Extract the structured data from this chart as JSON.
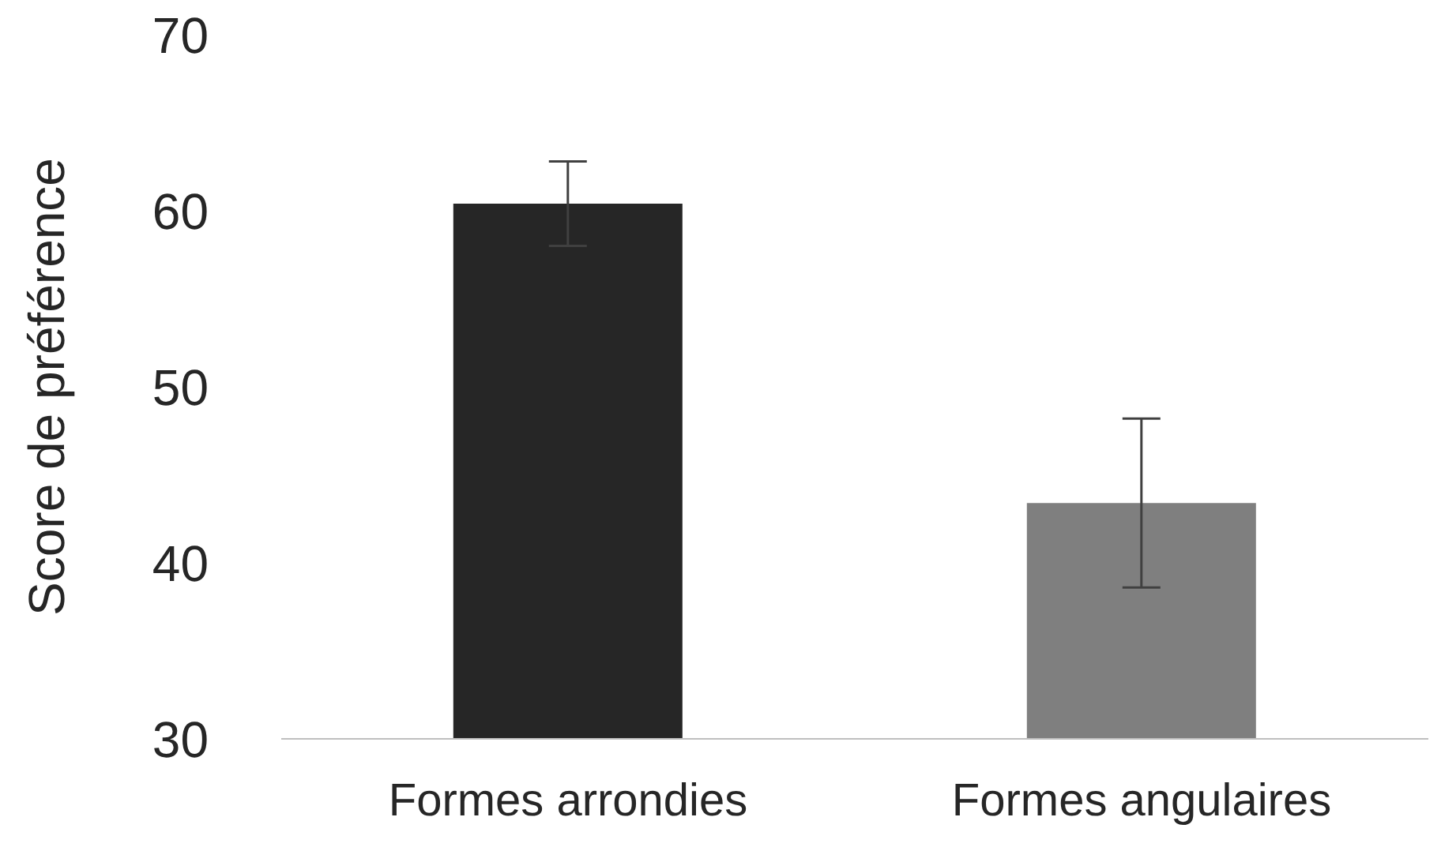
{
  "chart_data": {
    "type": "bar",
    "ylabel": "Score de préférence",
    "categories": [
      "Formes arrondies",
      "Formes angulaires"
    ],
    "values": [
      60.4,
      43.4
    ],
    "colors": [
      "#262626",
      "#7f7f7f"
    ],
    "errors": [
      2.4,
      4.8
    ],
    "ylim": [
      30,
      70
    ],
    "yticks": [
      30,
      40,
      50,
      60,
      70
    ]
  }
}
